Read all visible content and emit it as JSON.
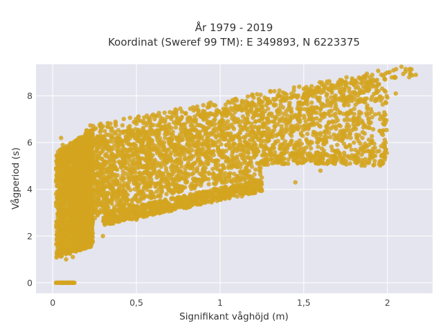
{
  "chart_data": {
    "type": "scatter",
    "title": [
      "År 1979 - 2019",
      "Koordinat (Sweref 99 TM): E 349893, N 6223375"
    ],
    "xlabel": "Signifikant våghöjd (m)",
    "ylabel": "Vågperiod (s)",
    "xlim": [
      -0.1,
      2.27
    ],
    "ylim": [
      -0.45,
      9.35
    ],
    "x_ticks": [
      0,
      0.5,
      1,
      1.5,
      2
    ],
    "x_tick_labels": [
      "0",
      "0,5",
      "1",
      "1,5",
      "2"
    ],
    "y_ticks": [
      0,
      2,
      4,
      6,
      8
    ],
    "y_tick_labels": [
      "0",
      "2",
      "4",
      "6",
      "8"
    ],
    "grid": true,
    "marker_color": "#D4A520",
    "plot_background": "#E5E5EF",
    "series": [
      {
        "points": [
          [
            0.02,
            0
          ],
          [
            0.05,
            0
          ],
          [
            0.08,
            0
          ],
          [
            0.11,
            0
          ],
          [
            0.13,
            0
          ],
          [
            0.03,
            1.5
          ],
          [
            0.03,
            2.8
          ],
          [
            0.04,
            5.5
          ],
          [
            0.05,
            6.2
          ],
          [
            0.06,
            5.9
          ],
          [
            0.08,
            1.0
          ],
          [
            0.12,
            1.1
          ],
          [
            0.2,
            1.6
          ],
          [
            0.3,
            2.0
          ],
          [
            0.5,
            2.7
          ],
          [
            0.8,
            3.2
          ],
          [
            1.0,
            3.6
          ],
          [
            1.2,
            4.0
          ],
          [
            1.45,
            4.3
          ],
          [
            1.6,
            4.8
          ],
          [
            0.1,
            5.5
          ],
          [
            0.2,
            6.3
          ],
          [
            0.35,
            6.6
          ],
          [
            0.5,
            6.8
          ],
          [
            0.7,
            7.3
          ],
          [
            0.9,
            7.6
          ],
          [
            1.1,
            7.8
          ],
          [
            1.3,
            8.2
          ],
          [
            1.5,
            8.3
          ],
          [
            1.75,
            8.6
          ],
          [
            1.95,
            8.5
          ],
          [
            2.0,
            9.0
          ],
          [
            2.13,
            8.8
          ],
          [
            2.17,
            8.9
          ],
          [
            2.05,
            8.1
          ],
          [
            1.8,
            6.6
          ],
          [
            1.7,
            6.2
          ],
          [
            1.55,
            6.0
          ],
          [
            1.4,
            5.6
          ],
          [
            1.25,
            5.2
          ],
          [
            1.0,
            4.8
          ],
          [
            0.8,
            4.3
          ],
          [
            0.6,
            3.8
          ],
          [
            0.75,
            3.5
          ],
          [
            0.9,
            3.9
          ],
          [
            1.05,
            3.9
          ],
          [
            1.13,
            3.7
          ],
          [
            0.45,
            6.1
          ],
          [
            0.6,
            6.5
          ],
          [
            0.65,
            6.9
          ]
        ]
      }
    ]
  }
}
